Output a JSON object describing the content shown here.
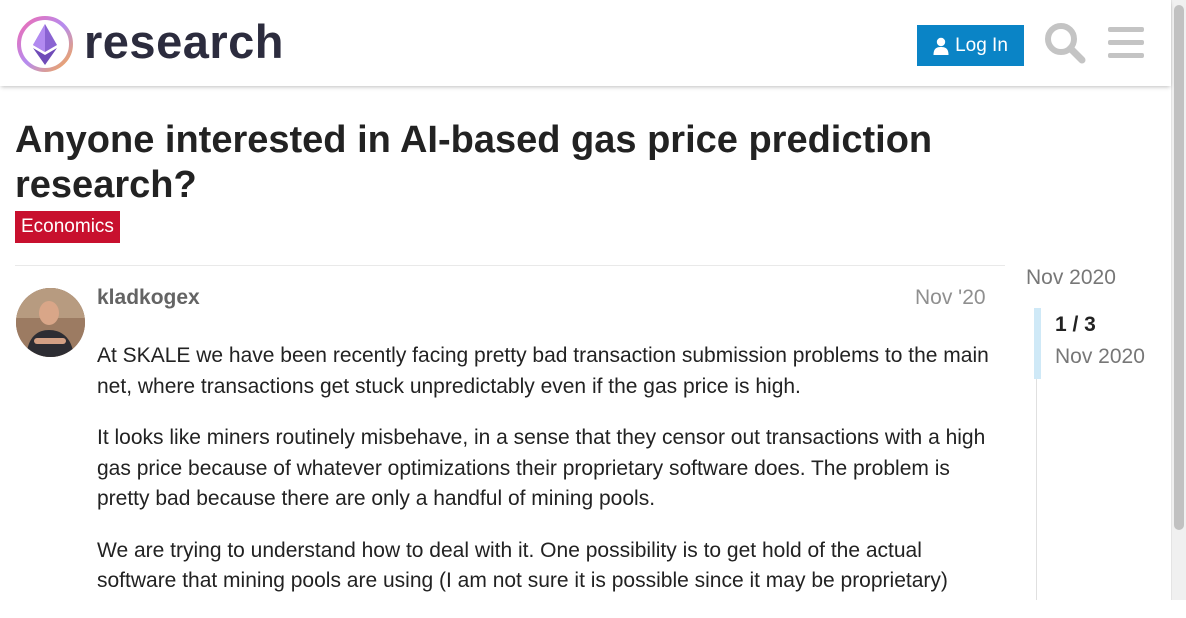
{
  "header": {
    "logo_text": "research",
    "login_label": "Log In",
    "icons": {
      "logo": "ethereum-research-logo-icon",
      "user": "user-icon",
      "search": "search-icon",
      "menu": "hamburger-menu-icon"
    },
    "colors": {
      "login_bg": "#0a84c6",
      "icon_gray": "#c4c4c4"
    }
  },
  "topic": {
    "title": "Anyone interested in AI-based gas price prediction research?",
    "category": "Economics",
    "category_color": "#c8102e"
  },
  "post": {
    "username": "kladkogex",
    "date": "Nov '20",
    "paragraphs": [
      "At SKALE we have been recently facing pretty bad transaction submission problems to the main net, where transactions get stuck unpredictably even if the gas price is high.",
      "It looks like miners routinely misbehave, in a sense that they censor out transactions with a high gas price because of whatever optimizations their proprietary software does. The problem is pretty bad because there are only a handful of mining pools.",
      "We are trying to understand how to deal with it. One possibility is to get hold of the actual software that mining pools are using (I am not sure it is possible since it may be proprietary)"
    ]
  },
  "timeline": {
    "top_date": "Nov 2020",
    "position": "1 / 3",
    "current_date": "Nov 2020",
    "progress_fraction": 0.333
  }
}
